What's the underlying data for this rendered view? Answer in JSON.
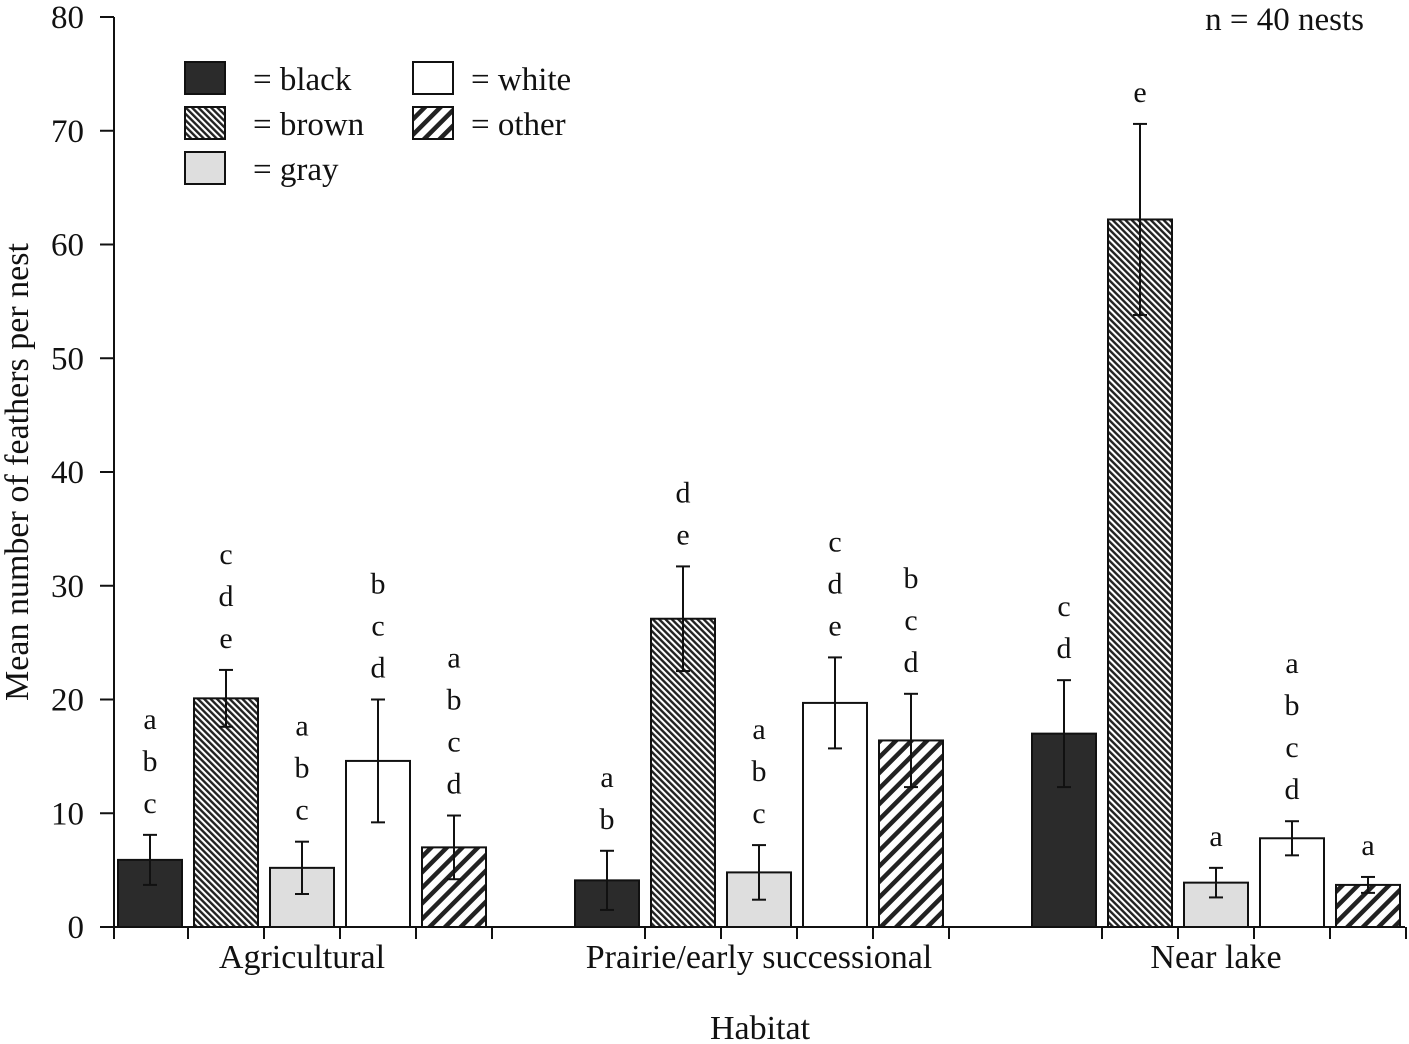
{
  "chart_data": {
    "type": "bar",
    "xlabel": "Habitat",
    "ylabel": "Mean number of feathers per nest",
    "ylim": [
      0,
      80
    ],
    "yticks": [
      0,
      10,
      20,
      30,
      40,
      50,
      60,
      70,
      80
    ],
    "annotation": "n = 40 nests",
    "legend_placement": "top-left",
    "categories": [
      "Agricultural",
      "Prairie/early successional",
      "Near lake"
    ],
    "series": [
      {
        "name": "black",
        "legend_label": "= black",
        "fill": "#2b2b2b",
        "pattern": "solid",
        "values": [
          5.9,
          4.1,
          17.0
        ],
        "err": [
          2.2,
          2.6,
          4.7
        ],
        "letters": [
          [
            "a",
            "b",
            "c"
          ],
          [
            "a",
            "b"
          ],
          [
            "c",
            "d"
          ]
        ]
      },
      {
        "name": "brown",
        "legend_label": "= brown",
        "fill": "#888888",
        "pattern": "dense-hatch",
        "values": [
          20.1,
          27.1,
          62.2
        ],
        "err": [
          2.5,
          4.6,
          8.4
        ],
        "letters": [
          [
            "c",
            "d",
            "e"
          ],
          [
            "d",
            "e"
          ],
          [
            "e"
          ]
        ]
      },
      {
        "name": "gray",
        "legend_label": "= gray",
        "fill": "#dedede",
        "pattern": "solid",
        "values": [
          5.2,
          4.8,
          3.9
        ],
        "err": [
          2.3,
          2.4,
          1.3
        ],
        "letters": [
          [
            "a",
            "b",
            "c"
          ],
          [
            "a",
            "b",
            "c"
          ],
          [
            "a"
          ]
        ]
      },
      {
        "name": "white",
        "legend_label": "= white",
        "fill": "#ffffff",
        "pattern": "solid",
        "values": [
          14.6,
          19.7,
          7.8
        ],
        "err": [
          5.4,
          4.0,
          1.5
        ],
        "letters": [
          [
            "b",
            "c",
            "d"
          ],
          [
            "c",
            "d",
            "e"
          ],
          [
            "a",
            "b",
            "c",
            "d"
          ]
        ]
      },
      {
        "name": "other",
        "legend_label": "= other",
        "fill": "#ffffff",
        "pattern": "wide-hatch",
        "values": [
          7.0,
          16.4,
          3.7
        ],
        "err": [
          2.8,
          4.1,
          0.7
        ],
        "letters": [
          [
            "a",
            "b",
            "c",
            "d"
          ],
          [
            "b",
            "c",
            "d"
          ],
          [
            "a"
          ]
        ]
      }
    ]
  }
}
